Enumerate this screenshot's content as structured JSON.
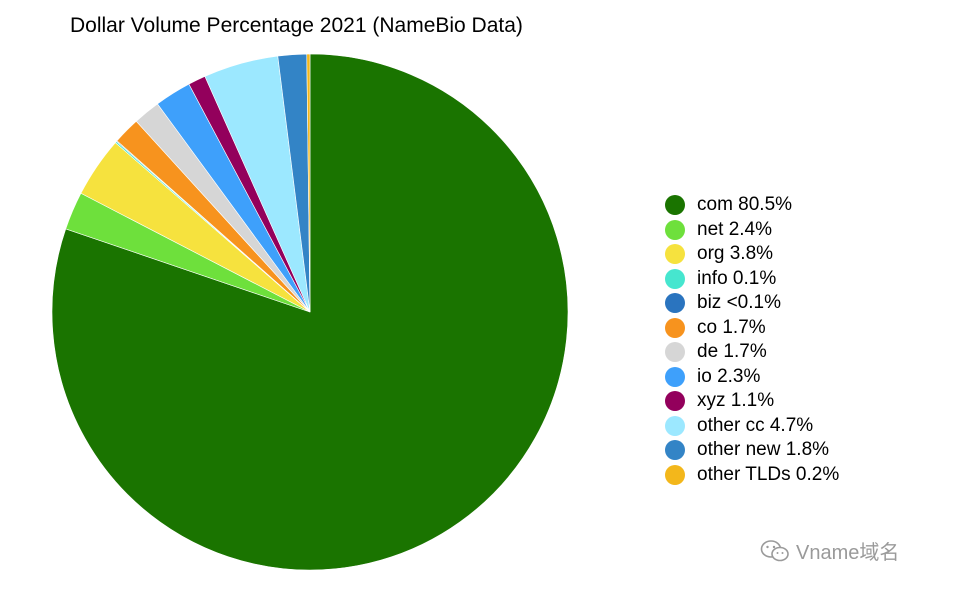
{
  "chart_data": {
    "type": "pie",
    "title": "Dollar Volume Percentage 2021 (NameBio Data)",
    "start_angle_deg": 0,
    "direction": "clockwise",
    "legend_position": "right",
    "slices": [
      {
        "label": "com",
        "value": 80.5,
        "legend": "com 80.5%",
        "color": "#1a7400"
      },
      {
        "label": "net",
        "value": 2.4,
        "legend": "net 2.4%",
        "color": "#6ee03c"
      },
      {
        "label": "org",
        "value": 3.8,
        "legend": "org 3.8%",
        "color": "#f6e23e"
      },
      {
        "label": "info",
        "value": 0.1,
        "legend": "info 0.1%",
        "color": "#46e6cf"
      },
      {
        "label": "biz",
        "value": 0.05,
        "legend": "biz <0.1%",
        "color": "#2a74bf"
      },
      {
        "label": "co",
        "value": 1.7,
        "legend": "co 1.7%",
        "color": "#f7931e"
      },
      {
        "label": "de",
        "value": 1.7,
        "legend": "de 1.7%",
        "color": "#d6d6d6"
      },
      {
        "label": "io",
        "value": 2.3,
        "legend": "io 2.3%",
        "color": "#3ea0fb"
      },
      {
        "label": "xyz",
        "value": 1.1,
        "legend": "xyz 1.1%",
        "color": "#93005c"
      },
      {
        "label": "other cc",
        "value": 4.7,
        "legend": "other cc 4.7%",
        "color": "#9ce8ff"
      },
      {
        "label": "other new",
        "value": 1.8,
        "legend": "other new 1.8%",
        "color": "#3384c6"
      },
      {
        "label": "other TLDs",
        "value": 0.2,
        "legend": "other TLDs 0.2%",
        "color": "#f3b71b"
      }
    ]
  },
  "watermark": {
    "text": "Vname域名",
    "icon": "wechat-icon"
  }
}
